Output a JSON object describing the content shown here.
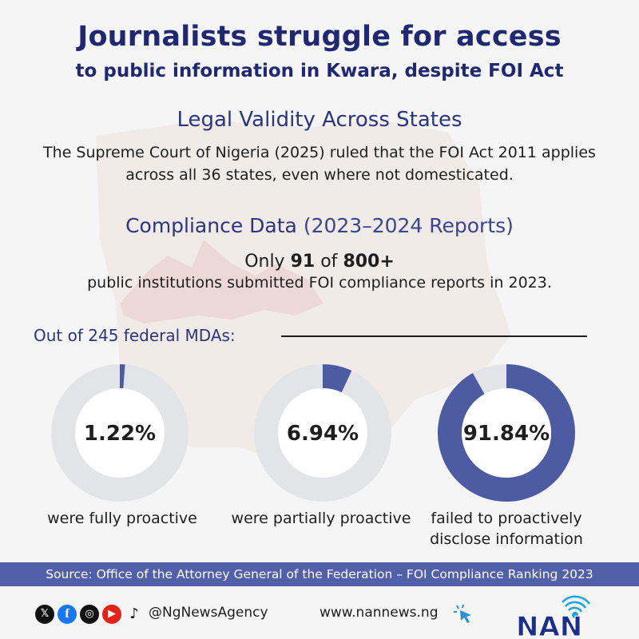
{
  "title": {
    "line1": "Journalists struggle for access",
    "line2": "to public information in Kwara, despite FOI Act"
  },
  "legal": {
    "heading": "Legal Validity Across States",
    "text": "The Supreme Court of Nigeria (2025) ruled that the FOI Act 2011 applies across all 36 states, even where not domesticated."
  },
  "compliance": {
    "heading_main": "Compliance Data",
    "heading_sub": "(2023–2024 Reports)",
    "only_prefix": "Only",
    "count": "91",
    "of": "of",
    "total": "800+",
    "institutions_text": "public institutions submitted FOI compliance reports in 2023."
  },
  "mda_label": "Out of 245 federal MDAs:",
  "chart_data": {
    "type": "pie",
    "categories": [
      "were fully proactive",
      "were partially proactive",
      "failed to proactively disclose information"
    ],
    "values": [
      1.22,
      6.94,
      91.84
    ],
    "labels": [
      "1.22%",
      "6.94%",
      "91.84%"
    ],
    "unit": "%",
    "colors": {
      "fill": "#4d5ba3",
      "track": "#e3e4e8",
      "hole": "#ffffff"
    }
  },
  "source": "Source: Office of the Attorney General of the Federation – FOI Compliance Ranking 2023",
  "footer": {
    "social_icons": [
      "x-icon",
      "facebook-icon",
      "instagram-icon",
      "youtube-icon",
      "tiktok-icon"
    ],
    "handle": "@NgNewsAgency",
    "website": "www.nannews.ng",
    "logo_text": "NAN"
  }
}
